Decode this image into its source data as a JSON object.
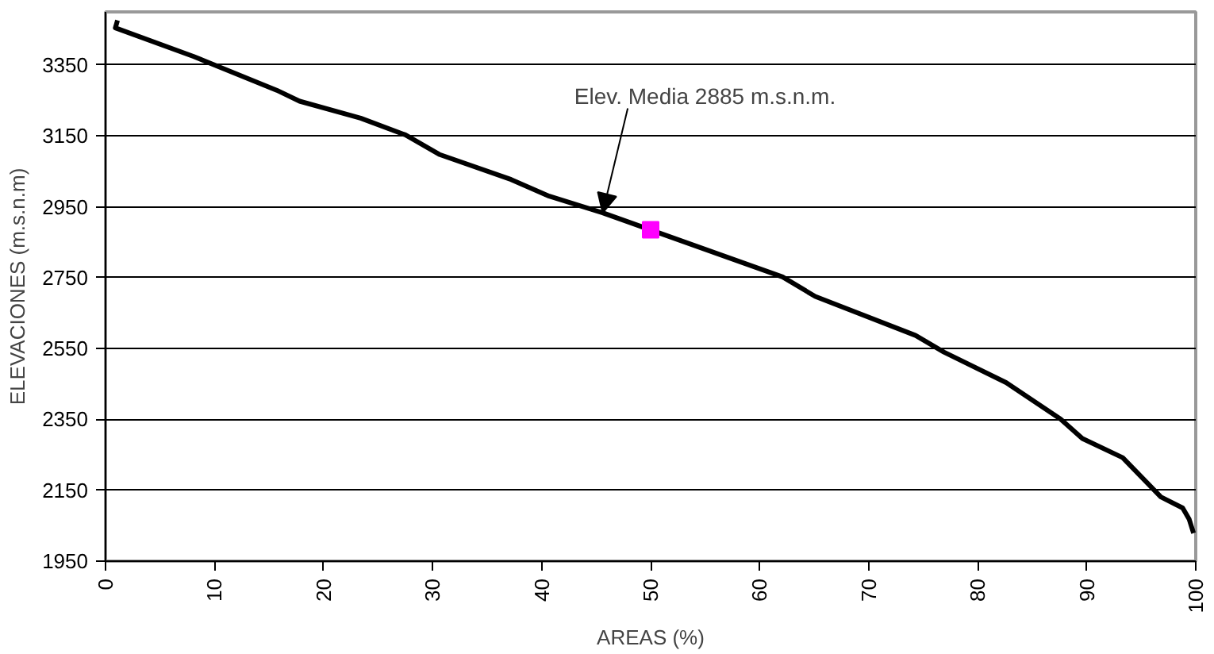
{
  "chart_data": {
    "type": "line",
    "xlabel": "AREAS (%)",
    "ylabel": "ELEVACIONES (m.s.n.m)",
    "xlim": [
      0,
      100
    ],
    "xticks": [
      0,
      10,
      20,
      30,
      40,
      50,
      60,
      70,
      80,
      90,
      100
    ],
    "ylim": [
      1950,
      3500
    ],
    "yticks": [
      1950,
      2150,
      2350,
      2550,
      2750,
      2950,
      3150,
      3350
    ],
    "grid": "y",
    "series": [
      {
        "color": "#000000",
        "x": [
          1.1,
          0.9,
          8.1,
          15.7,
          17.8,
          23.4,
          27.5,
          30.6,
          37.2,
          40.7,
          45.6,
          62.1,
          65.1,
          74.3,
          76.9,
          82.6,
          87.6,
          89.6,
          93.3,
          96.8,
          98.8,
          99.4,
          99.8
        ],
        "values": [
          3476,
          3455,
          3374,
          3279,
          3248,
          3200,
          3153,
          3098,
          3027,
          2980,
          2933,
          2752,
          2697,
          2587,
          2540,
          2454,
          2351,
          2296,
          2242,
          2131,
          2100,
          2068,
          2029
        ]
      },
      {
        "type": "scatter",
        "marker": "square",
        "color": "#ff00ff",
        "x": [
          50
        ],
        "values": [
          2885
        ]
      }
    ],
    "annotations": [
      {
        "text": "Elev. Media 2885 m.s.n.m.",
        "x": 45.6,
        "y": 2933
      }
    ]
  }
}
